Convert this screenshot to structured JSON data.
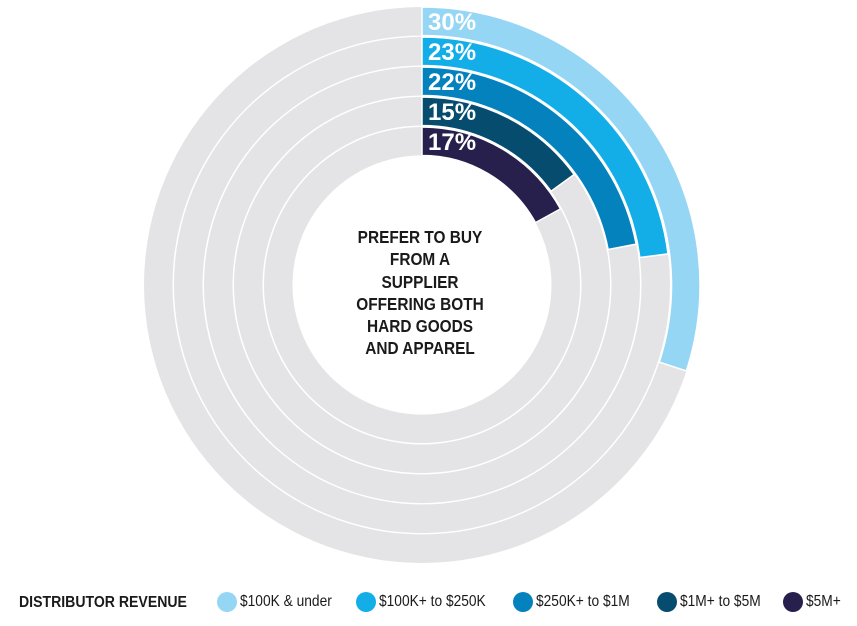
{
  "chart_data": {
    "type": "radial-bar",
    "center_text": [
      "PREFER TO BUY",
      "FROM A",
      "SUPPLIER",
      "OFFERING BOTH",
      "HARD GOODS",
      "AND APPAREL"
    ],
    "legend_title": "DISTRIBUTOR REVENUE",
    "max_value": 100,
    "series": [
      {
        "name": "$100K & under",
        "value": 30,
        "label": "30%",
        "color": "#96d6f5"
      },
      {
        "name": "$100K+ to $250K",
        "value": 23,
        "label": "23%",
        "color": "#13aee8"
      },
      {
        "name": "$250K+ to $1M",
        "value": 22,
        "label": "22%",
        "color": "#0482bd"
      },
      {
        "name": "$1M+ to $5M",
        "value": 15,
        "label": "15%",
        "color": "#064c6f"
      },
      {
        "name": "$5M+",
        "value": 17,
        "label": "17%",
        "color": "#271f4c"
      }
    ],
    "track_color": "#e4e4e6"
  }
}
